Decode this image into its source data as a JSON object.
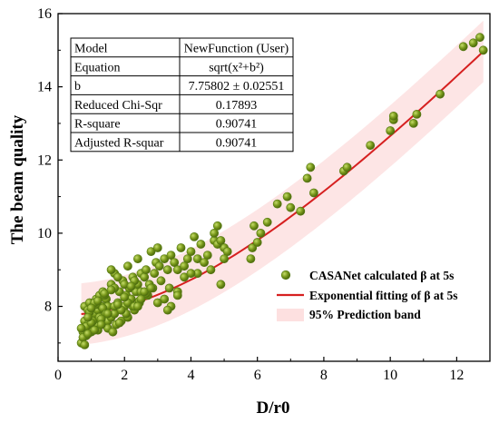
{
  "chart_data": {
    "type": "scatter",
    "xlabel": "D/r0",
    "ylabel": "The beam quality",
    "xlim": [
      0,
      13
    ],
    "ylim": [
      6.5,
      16
    ],
    "xticks": [
      "0",
      "2",
      "4",
      "6",
      "8",
      "10",
      "12"
    ],
    "yticks": [
      "8",
      "10",
      "12",
      "14",
      "16"
    ],
    "grid": false,
    "legend_position": "lower-right",
    "fit_table": [
      {
        "label": "Model",
        "value": "NewFunction (User)"
      },
      {
        "label": "Equation",
        "value": "sqrt(x²+b²)"
      },
      {
        "label": "b",
        "value": "7.75802 ± 0.02551"
      },
      {
        "label": "Reduced Chi-Sqr",
        "value": "0.17893"
      },
      {
        "label": "R-square",
        "value": "0.90741"
      },
      {
        "label": "Adjusted R-squar",
        "value": "0.90741"
      }
    ],
    "series": [
      {
        "name": "CASANet calculated β at 5s",
        "kind": "scatter",
        "color": "#7a9a1c",
        "x": [
          0.7,
          0.75,
          0.8,
          0.8,
          0.85,
          0.9,
          0.9,
          0.95,
          1.0,
          1.0,
          1.05,
          1.1,
          1.1,
          1.15,
          1.2,
          1.2,
          1.25,
          1.3,
          1.3,
          1.35,
          1.4,
          1.4,
          1.45,
          1.5,
          1.5,
          0.75,
          0.85,
          0.95,
          1.05,
          1.15,
          1.25,
          1.35,
          1.45,
          0.8,
          0.9,
          1.0,
          1.1,
          1.2,
          1.3,
          1.4,
          1.5,
          1.6,
          1.6,
          1.7,
          1.7,
          1.75,
          1.8,
          1.85,
          1.9,
          1.95,
          2.0,
          2.05,
          2.1,
          2.15,
          2.2,
          2.25,
          2.3,
          2.35,
          2.4,
          2.45,
          2.5,
          2.55,
          1.6,
          1.7,
          1.8,
          1.9,
          2.0,
          2.1,
          2.2,
          2.3,
          2.4,
          2.5,
          2.6,
          2.65,
          2.7,
          2.75,
          2.8,
          2.85,
          2.9,
          2.95,
          3.0,
          1.65,
          1.85,
          2.05,
          2.25,
          2.45,
          2.65,
          3.05,
          3.1,
          3.2,
          3.3,
          3.35,
          3.4,
          3.5,
          3.6,
          3.7,
          3.8,
          3.9,
          4.0,
          4.1,
          4.2,
          4.3,
          4.5,
          4.7,
          4.8,
          4.9,
          5.0,
          5.1,
          3.2,
          3.4,
          3.6,
          3.8,
          4.0,
          4.2,
          4.4,
          4.6,
          4.8,
          5.0,
          3.0,
          3.3,
          3.6,
          4.7,
          4.9,
          0.7,
          0.9,
          1.1,
          1.3,
          1.5,
          1.7,
          1.9,
          2.1,
          2.3,
          2.5,
          1.0,
          1.2,
          1.4,
          1.6,
          1.8,
          2.0,
          2.2,
          2.4,
          2.6,
          2.8,
          5.8,
          5.9,
          6.1,
          6.3,
          6.6,
          6.9,
          7.0,
          7.3,
          7.5,
          7.6,
          7.7,
          8.6,
          8.7,
          9.4,
          10.0,
          10.1,
          10.1,
          10.7,
          10.8,
          11.5,
          12.2,
          12.5,
          12.7,
          12.8,
          5.85,
          6.0
        ],
        "y": [
          7.0,
          7.3,
          7.6,
          8.0,
          7.2,
          7.5,
          7.9,
          8.1,
          7.3,
          7.7,
          8.0,
          7.4,
          7.8,
          8.2,
          7.5,
          7.9,
          8.3,
          7.6,
          8.0,
          8.4,
          7.5,
          7.9,
          8.2,
          7.6,
          8.0,
          7.15,
          7.45,
          7.85,
          7.6,
          8.05,
          7.7,
          7.95,
          7.8,
          6.95,
          7.25,
          7.55,
          8.1,
          7.35,
          7.65,
          8.3,
          7.4,
          7.7,
          8.6,
          7.8,
          8.9,
          7.5,
          8.1,
          8.4,
          7.9,
          8.7,
          8.0,
          8.3,
          7.7,
          8.5,
          8.2,
          8.8,
          7.9,
          8.4,
          8.6,
          8.1,
          8.9,
          8.3,
          9.0,
          8.5,
          8.8,
          7.6,
          8.6,
          9.1,
          8.2,
          8.7,
          9.3,
          8.4,
          8.8,
          9.0,
          8.3,
          8.6,
          9.5,
          8.5,
          8.9,
          9.2,
          9.6,
          7.3,
          7.55,
          7.8,
          8.0,
          8.15,
          8.35,
          9.1,
          8.7,
          9.3,
          9.0,
          8.5,
          9.4,
          9.2,
          9.0,
          9.6,
          8.8,
          9.3,
          9.5,
          9.9,
          8.9,
          9.7,
          9.4,
          9.8,
          10.2,
          8.6,
          9.6,
          9.5,
          8.2,
          8.0,
          8.4,
          9.1,
          8.9,
          9.3,
          9.2,
          9.0,
          9.7,
          9.3,
          8.1,
          7.9,
          8.3,
          10.0,
          9.8,
          7.4,
          7.7,
          7.35,
          7.5,
          7.8,
          8.0,
          7.9,
          8.1,
          8.0,
          8.2,
          7.95,
          8.15,
          8.35,
          8.45,
          8.05,
          8.25,
          8.55,
          8.0,
          8.4,
          8.5,
          9.3,
          10.2,
          10.0,
          10.3,
          10.8,
          11.0,
          10.7,
          10.6,
          11.5,
          11.8,
          11.1,
          11.7,
          11.8,
          12.4,
          12.8,
          13.1,
          13.2,
          13.0,
          13.25,
          13.8,
          15.1,
          15.2,
          15.35,
          15.0,
          9.6,
          9.75
        ]
      },
      {
        "name": "Exponential fitting of β at 5s",
        "kind": "fit",
        "color": "#d62020",
        "b": 7.75802,
        "x_range": [
          0.7,
          12.8
        ]
      },
      {
        "name": "95% Prediction band",
        "kind": "band",
        "color": "#fde0e0",
        "halfwidth": 0.84
      }
    ]
  }
}
